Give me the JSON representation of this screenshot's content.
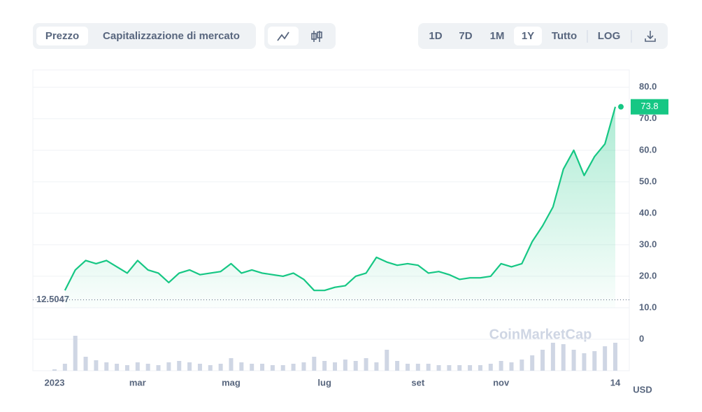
{
  "toolbar": {
    "tabs": [
      "Prezzo",
      "Capitalizzazione di mercato"
    ],
    "ranges": [
      "1D",
      "7D",
      "1M",
      "1Y",
      "Tutto"
    ],
    "log": "LOG"
  },
  "chart_data": {
    "type": "line",
    "categories": [
      "2023",
      null,
      null,
      null,
      null,
      null,
      null,
      null,
      "mar",
      null,
      null,
      null,
      null,
      null,
      null,
      null,
      null,
      "mag",
      null,
      null,
      null,
      null,
      null,
      null,
      null,
      null,
      "lug",
      null,
      null,
      null,
      null,
      null,
      null,
      null,
      null,
      "set",
      null,
      null,
      null,
      null,
      null,
      null,
      null,
      "nov",
      null,
      null,
      null,
      null,
      null,
      null,
      null,
      null,
      null,
      null,
      "14"
    ],
    "series": [
      {
        "name": "Prezzo",
        "color": "#16c784",
        "values": [
          null,
          15.5,
          22,
          25,
          24,
          25,
          23,
          21,
          25,
          22,
          21,
          18,
          21,
          22,
          20.5,
          21,
          21.5,
          24,
          21,
          22,
          21,
          20.5,
          20,
          21,
          19,
          15.5,
          15.5,
          16.5,
          17,
          20,
          21,
          26,
          24.5,
          23.5,
          24,
          23.5,
          21,
          21.5,
          20.5,
          19,
          19.5,
          19.5,
          20,
          24,
          23,
          24,
          31,
          36,
          42,
          54,
          60,
          52,
          58,
          62,
          73.8
        ]
      }
    ],
    "volume": [
      2,
      10,
      50,
      20,
      15,
      12,
      10,
      8,
      12,
      10,
      8,
      12,
      14,
      12,
      10,
      8,
      10,
      18,
      12,
      10,
      10,
      8,
      8,
      10,
      12,
      20,
      14,
      12,
      16,
      14,
      18,
      12,
      30,
      14,
      10,
      10,
      10,
      8,
      8,
      8,
      8,
      8,
      10,
      14,
      12,
      16,
      22,
      30,
      40,
      38,
      30,
      25,
      28,
      35,
      40
    ],
    "ylim": [
      -10,
      85.5
    ],
    "yticks": [
      0,
      {
        "value": 10,
        "label": "10.0"
      },
      {
        "value": 20,
        "label": "20.0"
      },
      {
        "value": 30,
        "label": "30.0"
      },
      {
        "value": 40,
        "label": "40.0"
      },
      {
        "value": 50,
        "label": "50.0"
      },
      {
        "value": 60,
        "label": "60.0"
      },
      {
        "value": 70,
        "label": "70.0"
      },
      {
        "value": 80,
        "label": "80.0"
      }
    ],
    "grid": true,
    "last_price": 73.8,
    "baseline": 12.5047,
    "currency": "USD",
    "watermark": "CoinMarketCap"
  }
}
